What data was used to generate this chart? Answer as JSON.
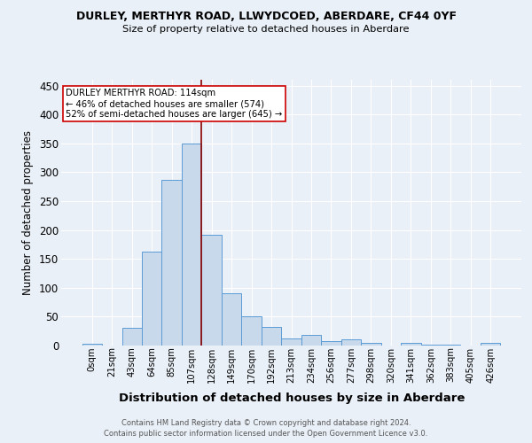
{
  "title": "DURLEY, MERTHYR ROAD, LLWYDCOED, ABERDARE, CF44 0YF",
  "subtitle": "Size of property relative to detached houses in Aberdare",
  "xlabel": "Distribution of detached houses by size in Aberdare",
  "ylabel": "Number of detached properties",
  "footer_line1": "Contains HM Land Registry data © Crown copyright and database right 2024.",
  "footer_line2": "Contains public sector information licensed under the Open Government Licence v3.0.",
  "bin_labels": [
    "0sqm",
    "21sqm",
    "43sqm",
    "64sqm",
    "85sqm",
    "107sqm",
    "128sqm",
    "149sqm",
    "170sqm",
    "192sqm",
    "213sqm",
    "234sqm",
    "256sqm",
    "277sqm",
    "298sqm",
    "320sqm",
    "341sqm",
    "362sqm",
    "383sqm",
    "405sqm",
    "426sqm"
  ],
  "bar_heights": [
    3,
    0,
    30,
    162,
    286,
    350,
    192,
    90,
    50,
    32,
    13,
    19,
    8,
    10,
    5,
    0,
    5,
    2,
    1,
    0,
    4
  ],
  "bar_color": "#c9d9ec",
  "bar_edge_color": "#5b9bd5",
  "bg_color": "#eaf0f8",
  "grid_color": "#ffffff",
  "vline_x": 5.5,
  "vline_color": "#8b0000",
  "annotation_text": "DURLEY MERTHYR ROAD: 114sqm\n← 46% of detached houses are smaller (574)\n52% of semi-detached houses are larger (645) →",
  "annotation_box_color": "#ffffff",
  "annotation_box_edge": "#cc0000",
  "ylim": [
    0,
    460
  ],
  "yticks": [
    0,
    50,
    100,
    150,
    200,
    250,
    300,
    350,
    400,
    450
  ]
}
